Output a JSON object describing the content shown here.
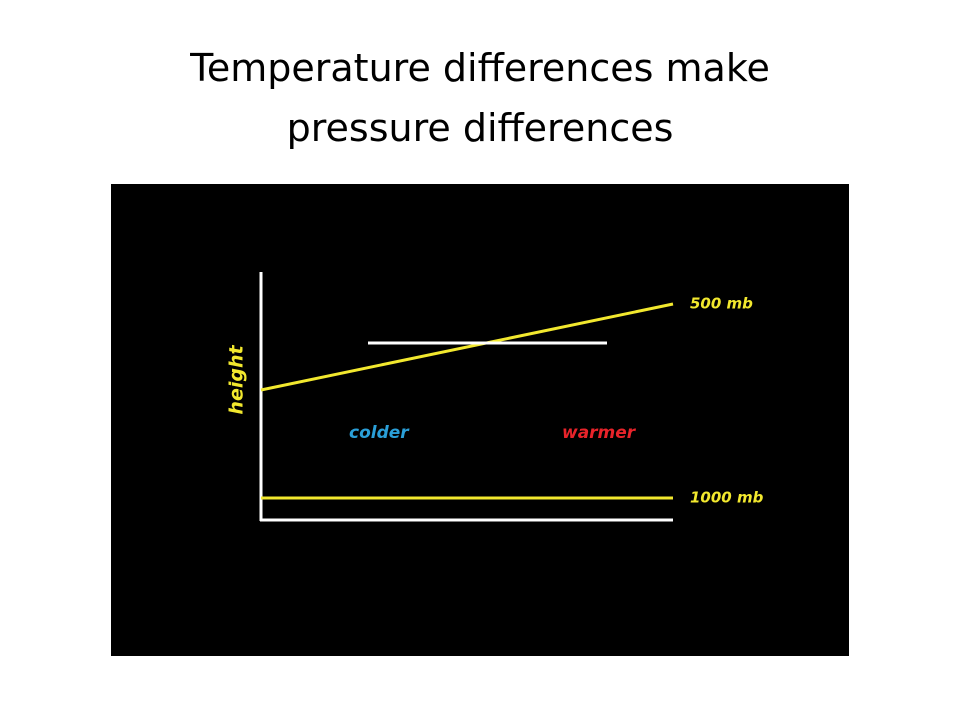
{
  "slide": {
    "title": "Temperature differences make pressure differences"
  },
  "diagram": {
    "axis_label": "height",
    "upper_level": "500 mb",
    "lower_level": "1000 mb",
    "cold_side": "colder",
    "warm_side": "warmer"
  }
}
